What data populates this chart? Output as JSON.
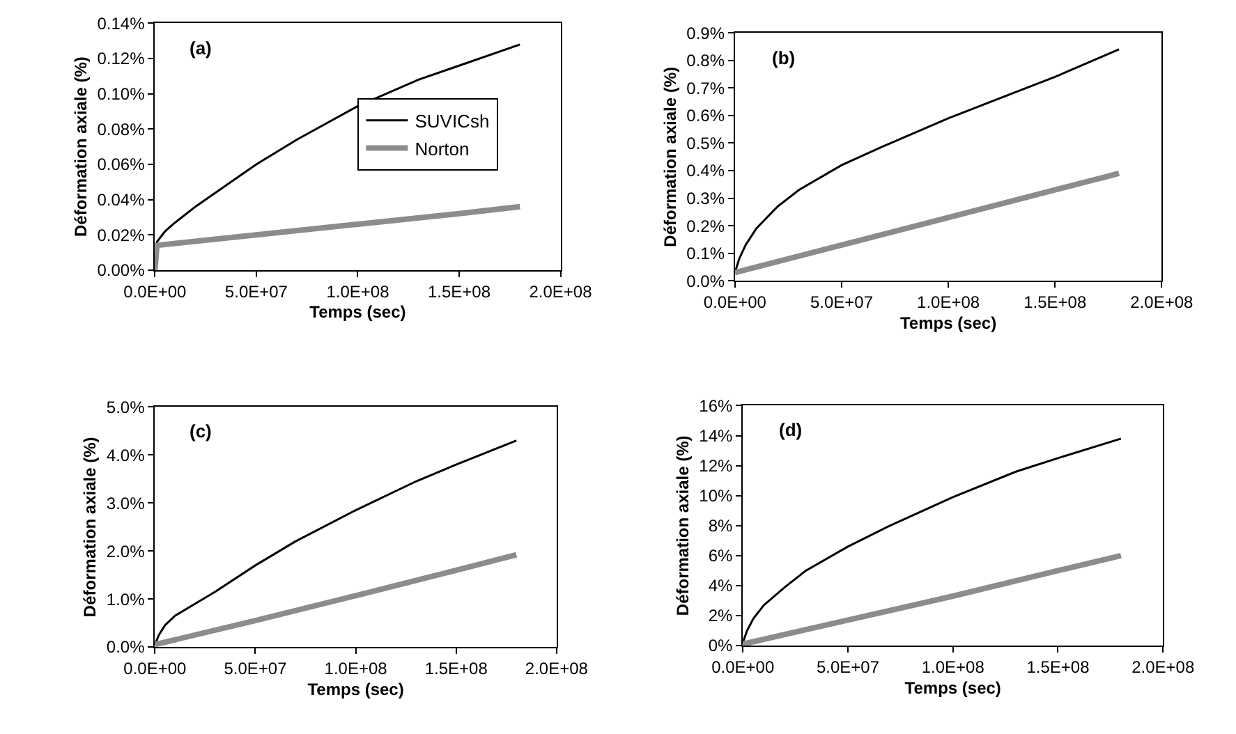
{
  "chart_data": [
    {
      "type": "line",
      "xlabel": "Temps (sec)",
      "ylabel": "Déformation axiale (%)",
      "annotations": [
        "(a)"
      ],
      "legend": "right",
      "marker": "none",
      "line_style": "solid",
      "xlim": [
        0,
        200000000
      ],
      "xticks": [
        {
          "value": 0,
          "label": "0.0E+00"
        },
        {
          "value": 50000000,
          "label": "5.0E+07"
        },
        {
          "value": 100000000,
          "label": "1.0E+08"
        },
        {
          "value": 150000000,
          "label": "1.5E+08"
        },
        {
          "value": 200000000,
          "label": "2.0E+08"
        }
      ],
      "ylim": [
        0,
        0.14
      ],
      "yticks": [
        {
          "value": 0,
          "label": "0.00%"
        },
        {
          "value": 0.02,
          "label": "0.02%"
        },
        {
          "value": 0.04,
          "label": "0.04%"
        },
        {
          "value": 0.06,
          "label": "0.06%"
        },
        {
          "value": 0.08,
          "label": "0.08%"
        },
        {
          "value": 0.1,
          "label": "0.10%"
        },
        {
          "value": 0.12,
          "label": "0.12%"
        },
        {
          "value": 0.14,
          "label": "0.14%"
        }
      ],
      "series": [
        {
          "name": "SUVICsh",
          "color": "#000000",
          "x": [
            0,
            1000000,
            5000000,
            10000000,
            20000000,
            30000000,
            50000000,
            70000000,
            100000000,
            130000000,
            150000000,
            180000000
          ],
          "values": [
            0,
            0.016,
            0.022,
            0.027,
            0.036,
            0.044,
            0.06,
            0.074,
            0.093,
            0.108,
            0.116,
            0.128
          ]
        },
        {
          "name": "Norton",
          "color": "#8c8c8c",
          "x": [
            0,
            1000000,
            50000000,
            100000000,
            150000000,
            180000000
          ],
          "values": [
            0,
            0.014,
            0.02,
            0.026,
            0.032,
            0.036
          ]
        }
      ]
    },
    {
      "type": "line",
      "xlabel": "Temps (sec)",
      "ylabel": "Déformation axiale (%)",
      "annotations": [
        "(b)"
      ],
      "marker": "none",
      "line_style": "solid",
      "xlim": [
        0,
        200000000
      ],
      "xticks": [
        {
          "value": 0,
          "label": "0.0E+00"
        },
        {
          "value": 50000000,
          "label": "5.0E+07"
        },
        {
          "value": 100000000,
          "label": "1.0E+08"
        },
        {
          "value": 150000000,
          "label": "1.5E+08"
        },
        {
          "value": 200000000,
          "label": "2.0E+08"
        }
      ],
      "ylim": [
        0,
        0.9
      ],
      "yticks": [
        {
          "value": 0,
          "label": "0.0%"
        },
        {
          "value": 0.1,
          "label": "0.1%"
        },
        {
          "value": 0.2,
          "label": "0.2%"
        },
        {
          "value": 0.3,
          "label": "0.3%"
        },
        {
          "value": 0.4,
          "label": "0.4%"
        },
        {
          "value": 0.5,
          "label": "0.5%"
        },
        {
          "value": 0.6,
          "label": "0.6%"
        },
        {
          "value": 0.7,
          "label": "0.7%"
        },
        {
          "value": 0.8,
          "label": "0.8%"
        },
        {
          "value": 0.9,
          "label": "0.9%"
        }
      ],
      "series": [
        {
          "color": "#000000",
          "x": [
            0,
            2000000,
            5000000,
            10000000,
            20000000,
            30000000,
            50000000,
            70000000,
            100000000,
            130000000,
            150000000,
            180000000
          ],
          "values": [
            0.03,
            0.08,
            0.13,
            0.19,
            0.27,
            0.33,
            0.42,
            0.49,
            0.59,
            0.68,
            0.74,
            0.84
          ]
        },
        {
          "color": "#8c8c8c",
          "x": [
            0,
            50000000,
            100000000,
            150000000,
            180000000
          ],
          "values": [
            0.03,
            0.13,
            0.23,
            0.33,
            0.39
          ]
        }
      ]
    },
    {
      "type": "line",
      "xlabel": "Temps (sec)",
      "ylabel": "Déformation axiale (%)",
      "annotations": [
        "(c)"
      ],
      "marker": "none",
      "line_style": "solid",
      "xlim": [
        0,
        200000000
      ],
      "xticks": [
        {
          "value": 0,
          "label": "0.0E+00"
        },
        {
          "value": 50000000,
          "label": "5.0E+07"
        },
        {
          "value": 100000000,
          "label": "1.0E+08"
        },
        {
          "value": 150000000,
          "label": "1.5E+08"
        },
        {
          "value": 200000000,
          "label": "2.0E+08"
        }
      ],
      "ylim": [
        0,
        5
      ],
      "yticks": [
        {
          "value": 0,
          "label": "0.0%"
        },
        {
          "value": 1,
          "label": "1.0%"
        },
        {
          "value": 2,
          "label": "2.0%"
        },
        {
          "value": 3,
          "label": "3.0%"
        },
        {
          "value": 4,
          "label": "4.0%"
        },
        {
          "value": 5,
          "label": "5.0%"
        }
      ],
      "series": [
        {
          "color": "#000000",
          "x": [
            0,
            2000000,
            5000000,
            10000000,
            20000000,
            30000000,
            50000000,
            70000000,
            100000000,
            130000000,
            150000000,
            180000000
          ],
          "values": [
            0.05,
            0.25,
            0.45,
            0.65,
            0.9,
            1.15,
            1.7,
            2.2,
            2.85,
            3.45,
            3.8,
            4.3
          ]
        },
        {
          "color": "#8c8c8c",
          "x": [
            0,
            50000000,
            100000000,
            150000000,
            180000000
          ],
          "values": [
            0.05,
            0.55,
            1.07,
            1.6,
            1.92
          ]
        }
      ]
    },
    {
      "type": "line",
      "xlabel": "Temps (sec)",
      "ylabel": "Déformation axiale (%)",
      "annotations": [
        "(d)"
      ],
      "marker": "none",
      "line_style": "solid",
      "xlim": [
        0,
        200000000
      ],
      "xticks": [
        {
          "value": 0,
          "label": "0.0E+00"
        },
        {
          "value": 50000000,
          "label": "5.0E+07"
        },
        {
          "value": 100000000,
          "label": "1.0E+08"
        },
        {
          "value": 150000000,
          "label": "1.5E+08"
        },
        {
          "value": 200000000,
          "label": "2.0E+08"
        }
      ],
      "ylim": [
        0,
        16
      ],
      "yticks": [
        {
          "value": 0,
          "label": "0%"
        },
        {
          "value": 2,
          "label": "2%"
        },
        {
          "value": 4,
          "label": "4%"
        },
        {
          "value": 6,
          "label": "6%"
        },
        {
          "value": 8,
          "label": "8%"
        },
        {
          "value": 10,
          "label": "10%"
        },
        {
          "value": 12,
          "label": "12%"
        },
        {
          "value": 14,
          "label": "14%"
        },
        {
          "value": 16,
          "label": "16%"
        }
      ],
      "series": [
        {
          "color": "#000000",
          "x": [
            0,
            2000000,
            5000000,
            10000000,
            20000000,
            30000000,
            50000000,
            70000000,
            100000000,
            130000000,
            150000000,
            180000000
          ],
          "values": [
            0.2,
            1.0,
            1.8,
            2.7,
            3.9,
            5.0,
            6.6,
            8.0,
            9.9,
            11.6,
            12.5,
            13.8
          ]
        },
        {
          "color": "#8c8c8c",
          "x": [
            0,
            50000000,
            100000000,
            150000000,
            180000000
          ],
          "values": [
            0.1,
            1.7,
            3.3,
            5.0,
            6.0
          ]
        }
      ]
    }
  ]
}
